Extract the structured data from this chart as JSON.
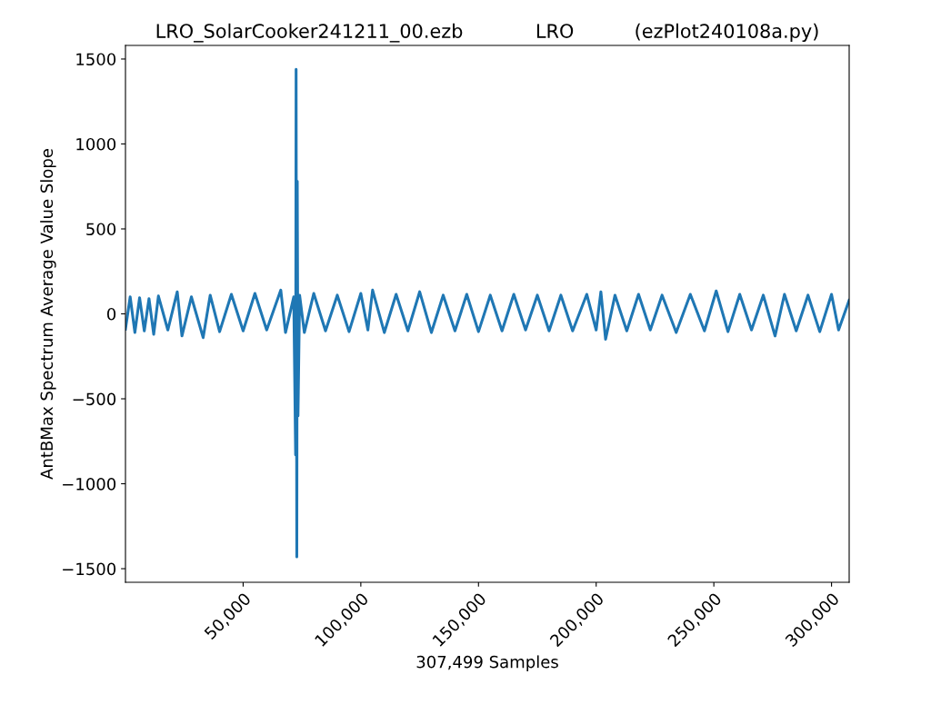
{
  "chart_data": {
    "type": "line",
    "title": "LRO_SolarCooker241211_00.ezb            LRO          (ezPlot240108a.py)",
    "xlabel": "307,499 Samples",
    "ylabel": "AntBMax Spectrum Average Value Slope",
    "series": [
      {
        "color": "#1f77b4",
        "x": [
          0,
          2000,
          4000,
          6000,
          8000,
          10000,
          12000,
          14000,
          18000,
          22000,
          24000,
          28000,
          33000,
          36000,
          40000,
          45000,
          50000,
          55000,
          60000,
          66000,
          68000,
          71500,
          72300,
          72500,
          72800,
          73000,
          73300,
          74000,
          76000,
          80000,
          85000,
          90000,
          95000,
          100000,
          103000,
          105000,
          110000,
          115000,
          120000,
          125000,
          130000,
          135000,
          140000,
          145000,
          150000,
          155000,
          160000,
          165000,
          170000,
          175000,
          180000,
          185000,
          190000,
          196000,
          200000,
          202000,
          204000,
          208000,
          213000,
          218000,
          223000,
          228000,
          234000,
          240000,
          246000,
          251000,
          256000,
          261000,
          266000,
          271000,
          276000,
          280000,
          285000,
          290000,
          295000,
          300000,
          303000,
          307498
        ],
        "values": [
          -90,
          100,
          -110,
          95,
          -100,
          90,
          -120,
          105,
          -95,
          130,
          -130,
          100,
          -140,
          110,
          -105,
          115,
          -100,
          120,
          -95,
          140,
          -110,
          100,
          -830,
          1440,
          -1430,
          780,
          -600,
          110,
          -110,
          120,
          -100,
          110,
          -105,
          120,
          -95,
          140,
          -110,
          115,
          -100,
          130,
          -110,
          110,
          -100,
          115,
          -105,
          110,
          -100,
          115,
          -95,
          110,
          -100,
          110,
          -100,
          115,
          -95,
          130,
          -150,
          110,
          -100,
          115,
          -95,
          110,
          -110,
          115,
          -100,
          135,
          -105,
          115,
          -95,
          110,
          -130,
          115,
          -100,
          110,
          -105,
          115,
          -95,
          80
        ]
      }
    ],
    "xlim": [
      0,
      307498
    ],
    "xticks": [
      {
        "value": 50000,
        "label": "50,000"
      },
      {
        "value": 100000,
        "label": "100,000"
      },
      {
        "value": 150000,
        "label": "150,000"
      },
      {
        "value": 200000,
        "label": "200,000"
      },
      {
        "value": 250000,
        "label": "250,000"
      },
      {
        "value": 300000,
        "label": "300,000"
      }
    ],
    "ylim": [
      -1580,
      1580
    ],
    "yticks": [
      {
        "value": -1500,
        "label": "−1500"
      },
      {
        "value": -1000,
        "label": "−1000"
      },
      {
        "value": -500,
        "label": "−500"
      },
      0,
      500,
      1000,
      1500
    ],
    "grid": false,
    "legend": false
  }
}
